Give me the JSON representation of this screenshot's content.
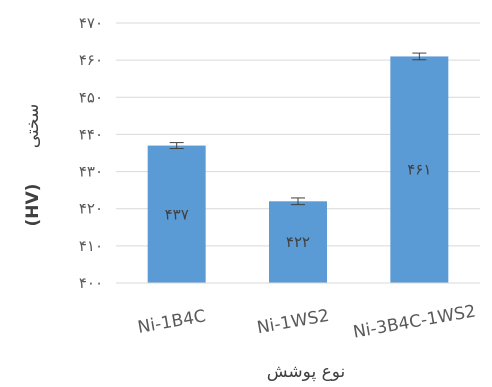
{
  "chart_data": {
    "type": "bar",
    "categories": [
      "Ni-1B4C",
      "Ni-1WS2",
      "Ni-3B4C-1WS2"
    ],
    "values": [
      437,
      422,
      461
    ],
    "value_labels": [
      "۴۳۷",
      "۴۲۲",
      "۴۶۱"
    ],
    "errors": [
      0.8,
      0.9,
      0.9
    ],
    "ylim": [
      400,
      470
    ],
    "yticks": [
      400,
      410,
      420,
      430,
      440,
      450,
      460,
      470
    ],
    "ytick_labels": [
      "۴۰۰",
      "۴۱۰",
      "۴۲۰",
      "۴۳۰",
      "۴۴۰",
      "۴۵۰",
      "۴۶۰",
      "۴۷۰"
    ],
    "xlabel": "نوع پوشش",
    "ylabel": "سختی",
    "ylabel_unit": "(HV)",
    "grid": true,
    "bar_color": "#5B9BD5",
    "grid_color": "#d9d9d9"
  }
}
